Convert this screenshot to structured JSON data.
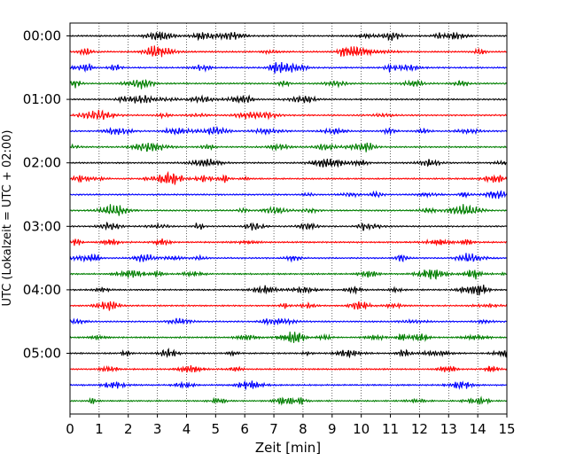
{
  "chart_data": {
    "type": "line",
    "title": "",
    "xlabel": "Zeit  [min]",
    "ylabel": "UTC (Lokalzeit = UTC + 02:00)",
    "xlim": [
      0,
      15
    ],
    "xticks": [
      0,
      1,
      2,
      3,
      4,
      5,
      6,
      7,
      8,
      9,
      10,
      11,
      12,
      13,
      14,
      15
    ],
    "yticks": [
      "00:00",
      "01:00",
      "02:00",
      "03:00",
      "04:00",
      "05:00"
    ],
    "ytick_trace_index": [
      0,
      4,
      8,
      12,
      16,
      20
    ],
    "trace_minutes": 15,
    "n_traces": 24,
    "trace_colors": [
      "#000000",
      "#ff0000",
      "#0000ff",
      "#007f00"
    ],
    "grid": "vertical dotted at each minute"
  }
}
